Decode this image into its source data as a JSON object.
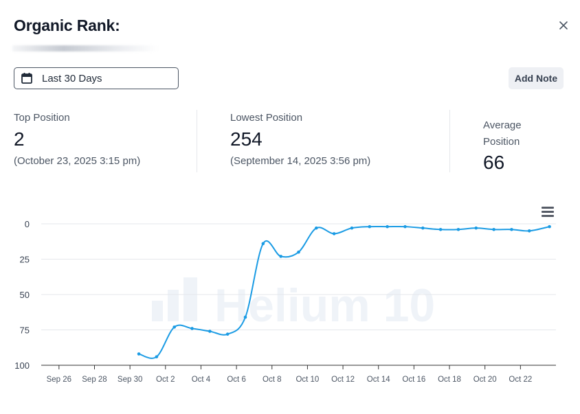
{
  "header": {
    "title": "Organic Rank:"
  },
  "icons": {
    "close": "close-icon",
    "calendar": "calendar-icon",
    "menu": "hamburger-menu-icon"
  },
  "date_range": {
    "label": "Last 30 Days"
  },
  "actions": {
    "add_note": "Add Note"
  },
  "stats": {
    "top": {
      "label": "Top Position",
      "value": "2",
      "date": "(October 23, 2025 3:15 pm)"
    },
    "lowest": {
      "label": "Lowest Position",
      "value": "254",
      "date": "(September 14, 2025 3:56 pm)"
    },
    "average": {
      "label_line1": "Average",
      "label_line2": "Position",
      "value": "66"
    }
  },
  "watermark": {
    "text": "Helium 10"
  },
  "colors": {
    "series": "#1a9be4",
    "grid": "#e5e7eb",
    "axis": "#333333"
  },
  "chart_data": {
    "type": "line",
    "title": "",
    "xlabel": "",
    "ylabel": "",
    "y_reversed": true,
    "ylim": [
      0,
      100
    ],
    "y_ticks": [
      0,
      25,
      50,
      75,
      100
    ],
    "x_range": [
      "2025-09-25",
      "2025-10-24"
    ],
    "x_tick_labels": [
      {
        "date": "2025-09-26",
        "label": "Sep 26"
      },
      {
        "date": "2025-09-28",
        "label": "Sep 28"
      },
      {
        "date": "2025-09-30",
        "label": "Sep 30"
      },
      {
        "date": "2025-10-02",
        "label": "Oct 2"
      },
      {
        "date": "2025-10-04",
        "label": "Oct 4"
      },
      {
        "date": "2025-10-06",
        "label": "Oct 6"
      },
      {
        "date": "2025-10-08",
        "label": "Oct 8"
      },
      {
        "date": "2025-10-10",
        "label": "Oct 10"
      },
      {
        "date": "2025-10-12",
        "label": "Oct 12"
      },
      {
        "date": "2025-10-14",
        "label": "Oct 14"
      },
      {
        "date": "2025-10-16",
        "label": "Oct 16"
      },
      {
        "date": "2025-10-18",
        "label": "Oct 18"
      },
      {
        "date": "2025-10-20",
        "label": "Oct 20"
      },
      {
        "date": "2025-10-22",
        "label": "Oct 22"
      }
    ],
    "grid": true,
    "series": [
      {
        "points": [
          {
            "x": "2025-09-30T12:00",
            "y": 92
          },
          {
            "x": "2025-10-01T12:00",
            "y": 94
          },
          {
            "x": "2025-10-02T12:00",
            "y": 73
          },
          {
            "x": "2025-10-03T12:00",
            "y": 74
          },
          {
            "x": "2025-10-04T12:00",
            "y": 76
          },
          {
            "x": "2025-10-05T12:00",
            "y": 78
          },
          {
            "x": "2025-10-06T12:00",
            "y": 66
          },
          {
            "x": "2025-10-07T12:00",
            "y": 14
          },
          {
            "x": "2025-10-08T12:00",
            "y": 23
          },
          {
            "x": "2025-10-09T12:00",
            "y": 20
          },
          {
            "x": "2025-10-10T12:00",
            "y": 3
          },
          {
            "x": "2025-10-11T12:00",
            "y": 7
          },
          {
            "x": "2025-10-12T12:00",
            "y": 3
          },
          {
            "x": "2025-10-13T12:00",
            "y": 2
          },
          {
            "x": "2025-10-14T12:00",
            "y": 2
          },
          {
            "x": "2025-10-15T12:00",
            "y": 2
          },
          {
            "x": "2025-10-16T12:00",
            "y": 3
          },
          {
            "x": "2025-10-17T12:00",
            "y": 4
          },
          {
            "x": "2025-10-18T12:00",
            "y": 4
          },
          {
            "x": "2025-10-19T12:00",
            "y": 3
          },
          {
            "x": "2025-10-20T12:00",
            "y": 4
          },
          {
            "x": "2025-10-21T12:00",
            "y": 4
          },
          {
            "x": "2025-10-22T12:00",
            "y": 5
          },
          {
            "x": "2025-10-23T15:15",
            "y": 2
          }
        ]
      }
    ]
  }
}
